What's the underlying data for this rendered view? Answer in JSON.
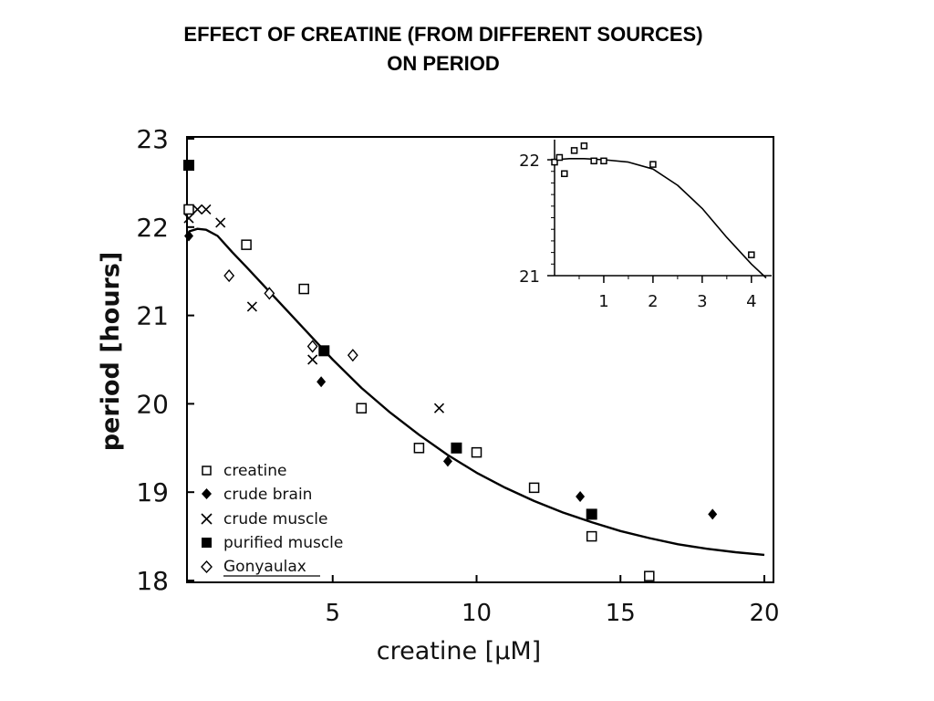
{
  "slide": {
    "title_line1": "EFFECT OF CREATINE (FROM DIFFERENT SOURCES)",
    "title_line2": "ON PERIOD"
  },
  "chart_data": [
    {
      "type": "scatter",
      "xlabel": "creatine  [μM]",
      "ylabel": "period [hours]",
      "xlim": [
        0,
        20
      ],
      "ylim": [
        18,
        23
      ],
      "x_ticks": [
        5,
        10,
        15,
        20
      ],
      "y_ticks": [
        18,
        19,
        20,
        21,
        22,
        23
      ],
      "grid": false,
      "legend_position": "bottom-left",
      "series": [
        {
          "name": "creatine",
          "marker": "open-square",
          "points": [
            [
              0,
              22.2
            ],
            [
              2,
              21.8
            ],
            [
              4,
              21.3
            ],
            [
              6,
              19.95
            ],
            [
              8,
              19.5
            ],
            [
              10,
              19.45
            ],
            [
              12,
              19.05
            ],
            [
              14,
              18.5
            ],
            [
              16,
              18.05
            ]
          ]
        },
        {
          "name": "crude brain",
          "marker": "filled-diamond",
          "points": [
            [
              0,
              21.9
            ],
            [
              4.6,
              20.25
            ],
            [
              9,
              19.35
            ],
            [
              13.6,
              18.95
            ],
            [
              18.2,
              18.75
            ]
          ]
        },
        {
          "name": "crude muscle",
          "marker": "cross",
          "points": [
            [
              0,
              22.1
            ],
            [
              0.3,
              22.2
            ],
            [
              0.6,
              22.2
            ],
            [
              1.1,
              22.05
            ],
            [
              2.2,
              21.1
            ],
            [
              4.3,
              20.5
            ],
            [
              8.7,
              19.95
            ]
          ]
        },
        {
          "name": "purified muscle",
          "marker": "filled-square",
          "points": [
            [
              0,
              22.7
            ],
            [
              4.7,
              20.6
            ],
            [
              9.3,
              19.5
            ],
            [
              14,
              18.75
            ]
          ]
        },
        {
          "name": "Gonyaulax",
          "marker": "open-diamond",
          "points": [
            [
              1.4,
              21.45
            ],
            [
              2.8,
              21.25
            ],
            [
              4.3,
              20.65
            ],
            [
              5.7,
              20.55
            ]
          ]
        }
      ],
      "fit_curve": {
        "x": [
          0,
          0.3,
          0.6,
          1,
          1.5,
          2,
          3,
          4,
          5,
          6,
          7,
          8,
          9,
          10,
          11,
          12,
          13,
          14,
          15,
          16,
          17,
          18,
          19,
          20
        ],
        "y": [
          21.95,
          21.98,
          21.97,
          21.9,
          21.72,
          21.55,
          21.2,
          20.85,
          20.5,
          20.18,
          19.9,
          19.65,
          19.42,
          19.22,
          19.05,
          18.9,
          18.77,
          18.66,
          18.56,
          18.48,
          18.41,
          18.36,
          18.32,
          18.29
        ]
      }
    },
    {
      "type": "scatter",
      "note": "inset",
      "xlim": [
        0,
        4.3
      ],
      "ylim": [
        21,
        22.15
      ],
      "x_ticks": [
        1,
        2,
        3,
        4
      ],
      "y_ticks": [
        21,
        22
      ],
      "series": [
        {
          "marker": "open-square",
          "points": [
            [
              0,
              21.98
            ],
            [
              0.1,
              22.02
            ],
            [
              0.2,
              21.88
            ],
            [
              0.4,
              22.08
            ],
            [
              0.6,
              22.12
            ],
            [
              0.8,
              21.99
            ],
            [
              1,
              21.99
            ],
            [
              2,
              21.96
            ],
            [
              4,
              21.18
            ]
          ]
        }
      ],
      "fit_curve": {
        "x": [
          0,
          0.3,
          0.6,
          1,
          1.5,
          2,
          2.5,
          3,
          3.5,
          4,
          4.3
        ],
        "y": [
          22.0,
          22.01,
          22.01,
          22.0,
          21.98,
          21.92,
          21.78,
          21.58,
          21.33,
          21.1,
          20.98
        ]
      }
    }
  ]
}
